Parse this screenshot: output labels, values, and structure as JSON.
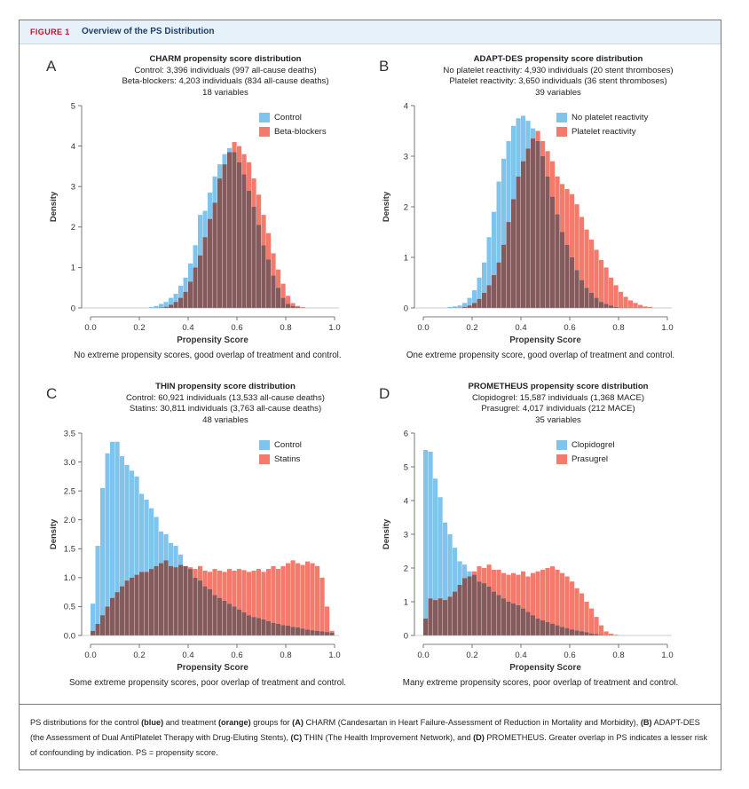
{
  "figure": {
    "label": "FIGURE 1",
    "title": "Overview of the PS Distribution"
  },
  "colors": {
    "control": "#7fc4ec",
    "treatment": "#f47a6b",
    "overlap": "#855a5d"
  },
  "caption": {
    "lead": "PS distributions for the control ",
    "blue": "(blue)",
    "mid1": " and treatment ",
    "orange": "(orange)",
    "mid2": " groups for ",
    "a": "(A)",
    "a_text": " CHARM (Candesartan in Heart Failure-Assessment of Reduction in Mortality and Morbidity), ",
    "b": "(B)",
    "b_text": " ADAPT-DES (the Assessment of Dual AntiPlatelet Therapy with Drug-Eluting Stents), ",
    "c": "(C)",
    "c_text": " THIN (The Health Improvement Network), and ",
    "d": "(D)",
    "d_text": " PROMETHEUS. Greater overlap in PS indicates a lesser risk of confounding by indication. PS = propensity score."
  },
  "chart_data": [
    {
      "letter": "A",
      "type": "bar",
      "title": "CHARM propensity score distribution",
      "subtitle1": "Control: 3,396 individuals (997 all-cause deaths)",
      "subtitle2": "Beta-blockers: 4,203 individuals (834 all-cause deaths)",
      "subtitle3": "18 variables",
      "xlabel": "Propensity Score",
      "ylabel": "Density",
      "xlim": [
        0,
        1
      ],
      "ylim": [
        0,
        5
      ],
      "xticks": [
        "0.0",
        "0.2",
        "0.4",
        "0.6",
        "0.8",
        "1.0"
      ],
      "yticks": [
        "0",
        "1",
        "2",
        "3",
        "4",
        "5"
      ],
      "note": "No extreme propensity scores, good overlap of treatment and control.",
      "legend": "top-right",
      "bin_start": 0.0,
      "bin_width": 0.02,
      "series": [
        {
          "name": "Control",
          "values": [
            0,
            0,
            0,
            0,
            0,
            0,
            0,
            0,
            0,
            0,
            0,
            0,
            0.02,
            0.05,
            0.1,
            0.15,
            0.25,
            0.35,
            0.55,
            0.75,
            1.1,
            1.55,
            2.3,
            2.4,
            2.85,
            3.25,
            3.55,
            3.8,
            3.95,
            3.85,
            3.6,
            3.3,
            2.9,
            2.5,
            2.05,
            1.55,
            1.2,
            0.8,
            0.5,
            0.25,
            0.1,
            0.05,
            0.02,
            0,
            0,
            0,
            0,
            0,
            0,
            0
          ]
        },
        {
          "name": "Beta-blockers",
          "values": [
            0,
            0,
            0,
            0,
            0,
            0,
            0,
            0,
            0,
            0,
            0,
            0,
            0,
            0,
            0.01,
            0.03,
            0.08,
            0.15,
            0.25,
            0.4,
            0.65,
            1.0,
            1.3,
            1.75,
            2.2,
            2.6,
            3.2,
            3.55,
            3.85,
            4.1,
            4.0,
            3.8,
            3.6,
            3.2,
            2.8,
            2.3,
            1.85,
            1.35,
            0.95,
            0.6,
            0.3,
            0.12,
            0.05,
            0.02,
            0,
            0,
            0,
            0,
            0,
            0
          ]
        }
      ]
    },
    {
      "letter": "B",
      "type": "bar",
      "title": "ADAPT-DES propensity score distribution",
      "subtitle1": "No platelet reactivity: 4,930 individuals (20 stent thromboses)",
      "subtitle2": "Platelet reactivity: 3,650 individuals (36 stent thromboses)",
      "subtitle3": "39 variables",
      "xlabel": "Propensity Score",
      "ylabel": "Density",
      "xlim": [
        0,
        1
      ],
      "ylim": [
        0,
        4
      ],
      "xticks": [
        "0.0",
        "0.2",
        "0.4",
        "0.6",
        "0.8",
        "1.0"
      ],
      "yticks": [
        "0",
        "1",
        "2",
        "3",
        "4"
      ],
      "note": "One extreme propensity score, good overlap of treatment and control.",
      "legend": "top-right",
      "bin_start": 0.0,
      "bin_width": 0.02,
      "series": [
        {
          "name": "No platelet reactivity",
          "values": [
            0,
            0,
            0,
            0,
            0,
            0.02,
            0.03,
            0.05,
            0.1,
            0.2,
            0.35,
            0.6,
            0.9,
            1.4,
            1.9,
            2.5,
            2.95,
            3.3,
            3.6,
            3.75,
            3.8,
            3.7,
            3.55,
            3.3,
            3.0,
            2.6,
            2.2,
            1.85,
            1.5,
            1.25,
            1.0,
            0.75,
            0.55,
            0.4,
            0.3,
            0.2,
            0.12,
            0.08,
            0.05,
            0.02,
            0,
            0,
            0,
            0,
            0,
            0,
            0,
            0,
            0,
            0
          ]
        },
        {
          "name": "Platelet reactivity",
          "values": [
            0,
            0,
            0,
            0,
            0,
            0,
            0,
            0,
            0.02,
            0.05,
            0.1,
            0.18,
            0.3,
            0.45,
            0.65,
            0.9,
            1.25,
            1.7,
            2.15,
            2.6,
            2.9,
            3.15,
            3.35,
            3.5,
            3.3,
            3.1,
            2.9,
            2.6,
            2.45,
            2.35,
            2.25,
            2.05,
            1.8,
            1.55,
            1.35,
            1.15,
            0.95,
            0.8,
            0.6,
            0.45,
            0.32,
            0.22,
            0.15,
            0.1,
            0.06,
            0.03,
            0.02,
            0,
            0,
            0
          ]
        }
      ]
    },
    {
      "letter": "C",
      "type": "bar",
      "title": "THIN propensity score distribution",
      "subtitle1": "Control: 60,921 individuals (13,533 all-cause deaths)",
      "subtitle2": "Statins: 30,811 individuals (3,763 all-cause deaths)",
      "subtitle3": "48 variables",
      "xlabel": "Propensity Score",
      "ylabel": "Density",
      "xlim": [
        0,
        1
      ],
      "ylim": [
        0,
        3.5
      ],
      "xticks": [
        "0.0",
        "0.2",
        "0.4",
        "0.6",
        "0.8",
        "1.0"
      ],
      "yticks": [
        "0.0",
        "0.5",
        "1.0",
        "1.5",
        "2.0",
        "2.5",
        "3.0",
        "3.5"
      ],
      "note": "Some extreme propensity scores, poor overlap of treatment and control.",
      "legend": "top-right",
      "bin_start": 0.0,
      "bin_width": 0.02,
      "series": [
        {
          "name": "Control",
          "values": [
            0.55,
            1.55,
            2.55,
            3.15,
            3.35,
            3.35,
            3.1,
            2.95,
            2.85,
            2.75,
            2.45,
            2.35,
            2.2,
            2.05,
            1.8,
            1.75,
            1.6,
            1.55,
            1.4,
            1.2,
            1.15,
            1.0,
            0.95,
            0.85,
            0.8,
            0.7,
            0.65,
            0.6,
            0.55,
            0.5,
            0.45,
            0.4,
            0.35,
            0.32,
            0.3,
            0.28,
            0.25,
            0.22,
            0.2,
            0.18,
            0.17,
            0.15,
            0.14,
            0.12,
            0.1,
            0.09,
            0.08,
            0.07,
            0.06,
            0.05
          ]
        },
        {
          "name": "Statins",
          "values": [
            0.08,
            0.2,
            0.35,
            0.5,
            0.65,
            0.75,
            0.85,
            0.95,
            1.0,
            1.05,
            1.1,
            1.1,
            1.15,
            1.2,
            1.25,
            1.3,
            1.2,
            1.18,
            1.22,
            1.2,
            1.18,
            1.15,
            1.2,
            1.12,
            1.1,
            1.15,
            1.12,
            1.1,
            1.15,
            1.12,
            1.15,
            1.13,
            1.1,
            1.12,
            1.15,
            1.1,
            1.15,
            1.2,
            1.15,
            1.2,
            1.25,
            1.3,
            1.25,
            1.22,
            1.28,
            1.25,
            1.2,
            1.0,
            0.5,
            0.08
          ]
        }
      ]
    },
    {
      "letter": "D",
      "type": "bar",
      "title": "PROMETHEUS propensity score distribution",
      "subtitle1": "Clopidogrel: 15,587 individuals (1,368 MACE)",
      "subtitle2": "Prasugrel: 4,017 individuals (212 MACE)",
      "subtitle3": "35 variables",
      "xlabel": "Propensity Score",
      "ylabel": "Density",
      "xlim": [
        0,
        1
      ],
      "ylim": [
        0,
        6
      ],
      "xticks": [
        "0.0",
        "0.2",
        "0.4",
        "0.6",
        "0.8",
        "1.0"
      ],
      "yticks": [
        "0",
        "1",
        "2",
        "3",
        "4",
        "5",
        "6"
      ],
      "note": "Many extreme propensity scores, poor overlap of treatment and control.",
      "legend": "top-right",
      "bin_start": 0.0,
      "bin_width": 0.02,
      "series": [
        {
          "name": "Clopidogrel",
          "values": [
            5.5,
            5.45,
            4.65,
            4.1,
            3.35,
            3.0,
            2.6,
            2.2,
            2.1,
            1.9,
            1.8,
            1.6,
            1.55,
            1.45,
            1.3,
            1.2,
            1.1,
            1.0,
            0.95,
            0.9,
            0.8,
            0.7,
            0.6,
            0.5,
            0.45,
            0.4,
            0.35,
            0.3,
            0.25,
            0.22,
            0.18,
            0.15,
            0.12,
            0.1,
            0.06,
            0.04,
            0.02,
            0,
            0,
            0,
            0,
            0,
            0,
            0,
            0,
            0,
            0,
            0,
            0,
            0
          ]
        },
        {
          "name": "Prasugrel",
          "values": [
            0.5,
            1.1,
            1.05,
            1.1,
            1.05,
            1.15,
            1.3,
            1.5,
            1.7,
            1.75,
            1.9,
            2.05,
            2.0,
            2.1,
            1.95,
            1.95,
            1.85,
            1.8,
            1.85,
            1.8,
            1.9,
            1.75,
            1.85,
            1.9,
            1.95,
            2.0,
            2.05,
            1.95,
            1.85,
            1.75,
            1.6,
            1.4,
            1.25,
            1.0,
            0.8,
            0.55,
            0.3,
            0.12,
            0.05,
            0.02,
            0,
            0,
            0,
            0,
            0,
            0,
            0,
            0,
            0,
            0
          ]
        }
      ]
    }
  ]
}
